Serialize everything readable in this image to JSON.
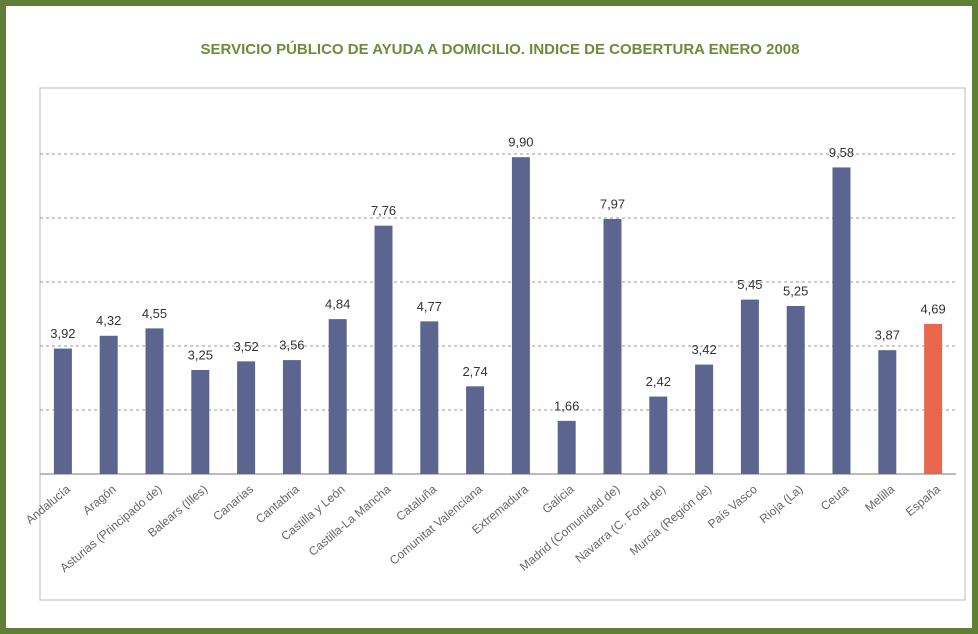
{
  "chart_data": {
    "type": "bar",
    "title": "SERVICIO PÚBLICO DE AYUDA A DOMICILIO. INDICE DE COBERTURA ENERO 2008",
    "categories": [
      "Andalucía",
      "Aragón",
      "Asturias (Principado de)",
      "Balears (Illes)",
      "Canarias",
      "Cantabria",
      "Castilla y León",
      "Castilla-La Mancha",
      "Cataluña",
      "Comunitat Valenciana",
      "Extremadura",
      "Galicia",
      "Madrid (Comunidad de)",
      "Navarra (C. Foral de)",
      "Murcia (Región de)",
      "País Vasco",
      "Rioja (La)",
      "Ceuta",
      "Melilla",
      "España"
    ],
    "values": [
      3.92,
      4.32,
      4.55,
      3.25,
      3.52,
      3.56,
      4.84,
      7.76,
      4.77,
      2.74,
      9.9,
      1.66,
      7.97,
      2.42,
      3.42,
      5.45,
      5.25,
      9.58,
      3.87,
      4.69
    ],
    "value_labels": [
      "3,92",
      "4,32",
      "4,55",
      "3,25",
      "3,52",
      "3,56",
      "4,84",
      "7,76",
      "4,77",
      "2,74",
      "9,90",
      "1,66",
      "7,97",
      "2,42",
      "3,42",
      "5,45",
      "5,25",
      "9,58",
      "3,87",
      "4,69"
    ],
    "colors": [
      "#5b6590",
      "#5b6590",
      "#5b6590",
      "#5b6590",
      "#5b6590",
      "#5b6590",
      "#5b6590",
      "#5b6590",
      "#5b6590",
      "#5b6590",
      "#5b6590",
      "#5b6590",
      "#5b6590",
      "#5b6590",
      "#5b6590",
      "#5b6590",
      "#5b6590",
      "#5b6590",
      "#5b6590",
      "#e8664c"
    ],
    "ylim": [
      0,
      11
    ],
    "yticks": [
      0,
      2,
      4,
      6,
      8,
      10
    ],
    "grid": true
  }
}
